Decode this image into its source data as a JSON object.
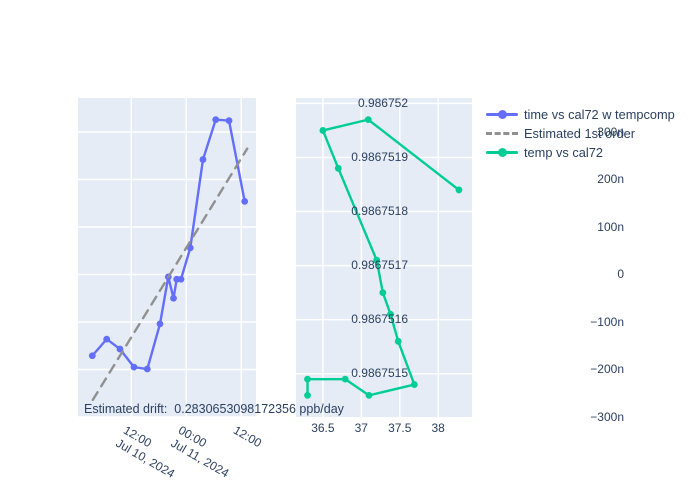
{
  "colors": {
    "plot_background": "#e5ecf6",
    "grid": "#ffffff",
    "text": "#2a3f5f",
    "trace_tempcomp": "#636efa",
    "trace_estimate": "#909090",
    "trace_temp": "#00cc96"
  },
  "legend": {
    "items": [
      {
        "label": "time vs cal72 w tempcomp",
        "color": "#636efa",
        "style": "solid-marker"
      },
      {
        "label": "Estimated 1st order",
        "color": "#909090",
        "style": "dashed"
      },
      {
        "label": "temp vs cal72",
        "color": "#00cc96",
        "style": "solid-marker"
      }
    ]
  },
  "annotation": {
    "label": "Estimated drift:",
    "value": "0.2830653098172356",
    "unit": "ppb/day",
    "text": "Estimated drift:  0.2830653098172356 ppb/day"
  },
  "chart_data": [
    {
      "type": "line",
      "name": "cal72-vs-time",
      "x_unit": "hours since Jul 10, 2024 00:00",
      "y_unit": "nano (1e-9), offset of cal72",
      "series": [
        {
          "name": "time vs cal72 w tempcomp",
          "color": "#636efa",
          "dash": "solid",
          "markers": true,
          "x": [
            3.49,
            6.63,
            9.53,
            12.59,
            15.49,
            18.26,
            20.07,
            21.21,
            21.91,
            22.84,
            24.87,
            27.64,
            30.42,
            33.32,
            36.74
          ],
          "y": [
            -171,
            -136,
            -157,
            -195,
            -199,
            -104,
            -5,
            -50,
            -10,
            -10,
            56,
            242,
            326,
            324,
            154
          ]
        },
        {
          "name": "Estimated 1st order",
          "color": "#909090",
          "dash": "dash",
          "markers": false,
          "x": [
            3.6,
            37.3
          ],
          "y": [
            -264,
            265
          ]
        }
      ],
      "xaxis": {
        "range": [
          0.37,
          39.21
        ],
        "ticks": [
          {
            "value": 12,
            "line1": "12:00",
            "line2": "Jul 10, 2024"
          },
          {
            "value": 24,
            "line1": "00:00",
            "line2": "Jul 11, 2024"
          },
          {
            "value": 36,
            "line1": "12:00",
            "line2": ""
          }
        ]
      },
      "yaxis": {
        "range": [
          -300,
          371.6
        ],
        "ticks": [
          {
            "value": 300,
            "label": "300n"
          },
          {
            "value": 200,
            "label": "200n"
          },
          {
            "value": 100,
            "label": "100n"
          },
          {
            "value": 0,
            "label": "0"
          },
          {
            "value": -100,
            "label": "−100n"
          },
          {
            "value": -200,
            "label": "−200n"
          },
          {
            "value": -300,
            "label": "−300n"
          }
        ]
      }
    },
    {
      "type": "line",
      "name": "cal72-vs-temp",
      "x_unit": "temperature",
      "y_unit": "cal72",
      "series": [
        {
          "name": "temp vs cal72",
          "color": "#00cc96",
          "dash": "solid",
          "markers": true,
          "x": [
            36.3,
            36.3,
            36.79,
            37.1,
            37.69,
            37.48,
            37.38,
            37.28,
            37.2,
            36.7,
            36.5,
            37.09,
            38.27
          ],
          "y": [
            0.98675146,
            0.98675149,
            0.98675149,
            0.98675146,
            0.98675148,
            0.98675156,
            0.98675161,
            0.98675165,
            0.98675171,
            0.98675188,
            0.98675195,
            0.98675197,
            0.98675184
          ]
        }
      ],
      "xaxis": {
        "range": [
          36.15,
          38.44
        ],
        "ticks": [
          {
            "value": 36.5,
            "label": "36.5"
          },
          {
            "value": 37,
            "label": "37"
          },
          {
            "value": 37.5,
            "label": "37.5"
          },
          {
            "value": 38,
            "label": "38"
          }
        ]
      },
      "yaxis": {
        "range": [
          0.98675142,
          0.98675201
        ],
        "ticks": [
          {
            "value": 0.986752,
            "label": "0.986752"
          },
          {
            "value": 0.9867519,
            "label": "0.9867519"
          },
          {
            "value": 0.9867518,
            "label": "0.9867518"
          },
          {
            "value": 0.9867517,
            "label": "0.9867517"
          },
          {
            "value": 0.9867516,
            "label": "0.9867516"
          },
          {
            "value": 0.9867515,
            "label": "0.9867515"
          }
        ]
      }
    }
  ]
}
